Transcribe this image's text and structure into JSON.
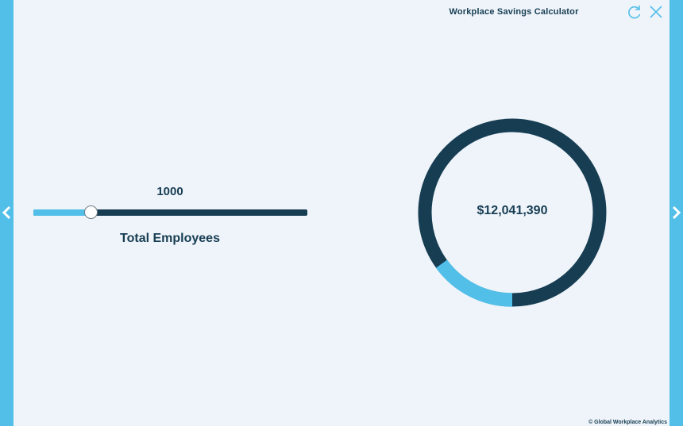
{
  "app": {
    "title": "Workplace Savings Calculator",
    "footer": "© Global Workplace Analytics"
  },
  "colors": {
    "accent": "#52bfe8",
    "dark": "#173d53",
    "background": "#eef4f9"
  },
  "icons": {
    "refresh": "refresh-icon",
    "close": "close-icon",
    "prev": "chevron-left-icon",
    "next": "chevron-right-icon"
  },
  "slider": {
    "value": "1000",
    "label": "Total Employees",
    "fraction": 0.21
  },
  "donut": {
    "total": "$12,041,390",
    "highlight_fraction": 0.15
  }
}
